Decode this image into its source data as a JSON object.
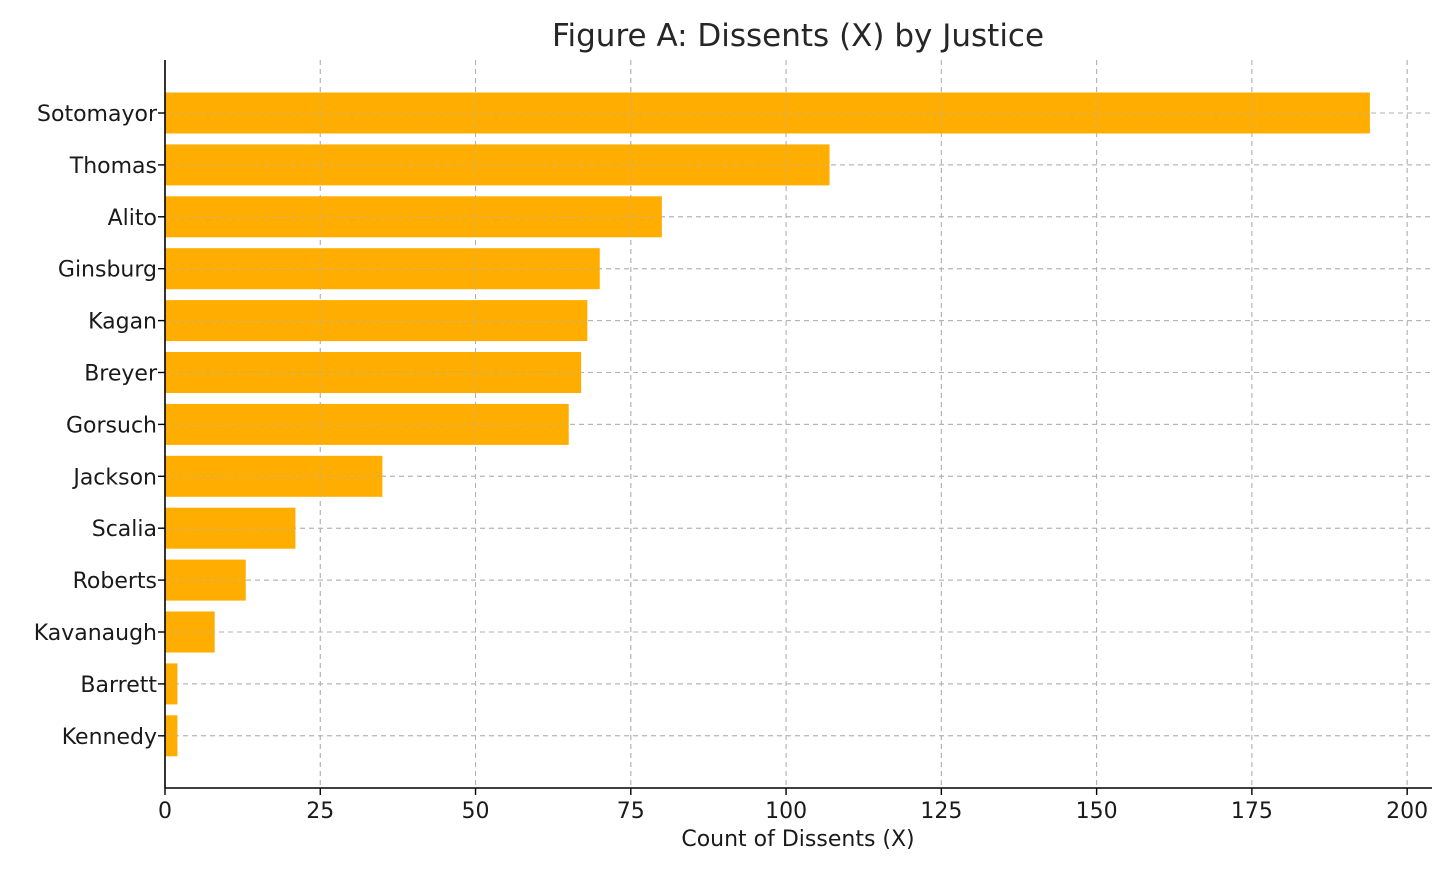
{
  "chart_data": {
    "type": "bar",
    "orientation": "horizontal",
    "title": "Figure A: Dissents (X) by Justice",
    "xlabel": "Count of Dissents (X)",
    "ylabel": "",
    "categories": [
      "Sotomayor",
      "Thomas",
      "Alito",
      "Ginsburg",
      "Kagan",
      "Breyer",
      "Gorsuch",
      "Jackson",
      "Scalia",
      "Roberts",
      "Kavanaugh",
      "Barrett",
      "Kennedy"
    ],
    "values": [
      194,
      107,
      80,
      70,
      68,
      67,
      65,
      35,
      21,
      13,
      8,
      2,
      2
    ],
    "xlim": [
      0,
      204
    ],
    "xticks": [
      0,
      25,
      50,
      75,
      100,
      125,
      150,
      175,
      200
    ],
    "grid": true,
    "grid_style": "dashed",
    "bar_color": "#FFAE00",
    "grid_color": "#b0b0b0",
    "legend": "none"
  }
}
